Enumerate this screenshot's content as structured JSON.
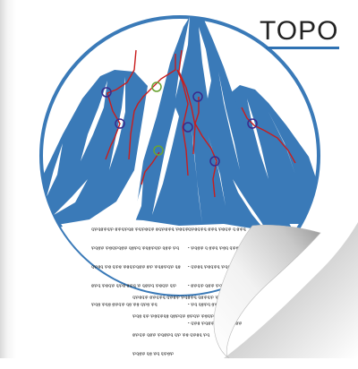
{
  "title": "TOPO",
  "colors": {
    "mountain": "#3a7ab8",
    "route": "#c91d1d",
    "belay_ring_blue": "#3a2a8c",
    "belay_ring_green": "#6aa332",
    "title_rule": "#2f72b3"
  },
  "text_blocks": {
    "left": [
      "ꝗꝕꝗꞡꝕꝗꝕ ꞡꝕꝗꝕꝗꞡ ꝕꝗꝕꞡꝗꝕ ꞡꝗꝕꞡꝕꝗ ꝕꞡꝗꝕ",
      "ꝕꝗꞡꝕ ꝕꞡꝗꝕꝗꞡꝕ ꝗꞡꝕꝗ ꝕꝗꞡꝕꝗꝕ ꝗꞡꝕ ꝕꝗ",
      "ꝗꝕꞡꝗ ꝕꞡ ꝗꝕꞡ ꝕꞡꝗꝕꝗꞡꝕ ꞡꝕ ꝕꝗꞡꝕꝗꝕ ꝗꞡ",
      "ꞡꝕꝗ ꝕꞡꝗꝕ ꝗꝕꞡ ꞡꝕꝗ ꝕ ꝗꞡꝕꝗ ꝕꞡꝗꝕ ꝗꝕ",
      "ꝕꝗꞡ ꝕꝗꞡ ꞡꝕꝗꝕ ꝗꞡ ꝕꞡ ꝗꝕꞡ ꝕꝗ"
    ],
    "right": [
      "ꝗꝕꞡꝗꝕꝗ ꞡꝕꝗ ꝕꞡꝗꝕ ꝗ ꞡꝕꝗ",
      "• ꝕꝗꞡꝕ ꝗ ꞡꝕꝗ ꝕꞡꝗ ꝗꝕꞡꝗꝕ",
      "• ꝗꝕꞡꝗ ꝕꞡꝗꝕꝗ ꝕꝗꞡ ꝗ ꞡꝕ",
      "• ꞡꝕꝗꝕ ꝗꞡꝕ ꝕꝗꞡꝕ ꝗꝕ",
      "• ꝕꝗ ꝗꞡꝕꝗ ꞡꝕꝗꝕ ꝗꞡ ꝕꝗ",
      "• ꝗꝕꞡ ꝕꝗꞡꝕꝗ ꞡꝕꝗ ꝕꝗꞡꝕ"
    ],
    "bottom": [
      "ꝗꝕꞡꝗꝕ ꞡꝕꝗꝕꝗ ꝗꝕꞡꝕ ꝕꝗꞡꝕꝗ ꝗꞡꝕꝗꝕ ꝕꝗꞡ",
      "ꝕꝗꞡ ꝗꝕ ꝕꞡꝗꝕꝗꞡ ꝗꞡꝕꝗꝕ ꞡꝕꝗꝕ ꝕꞡꝗꝕ ꝗꝕ",
      "ꞡꝕꝗꝕ ꝗꞡꝕ ꝕꝗꞡꝕꝗ ꝗꝕ ꝕꞡ ꝗꝕꞡꝗ ꝕꝗ",
      "ꝕꝗꞡꝕ ꝗꞡ ꝕꝗ ꝗꝕꞡꝕ"
    ]
  }
}
